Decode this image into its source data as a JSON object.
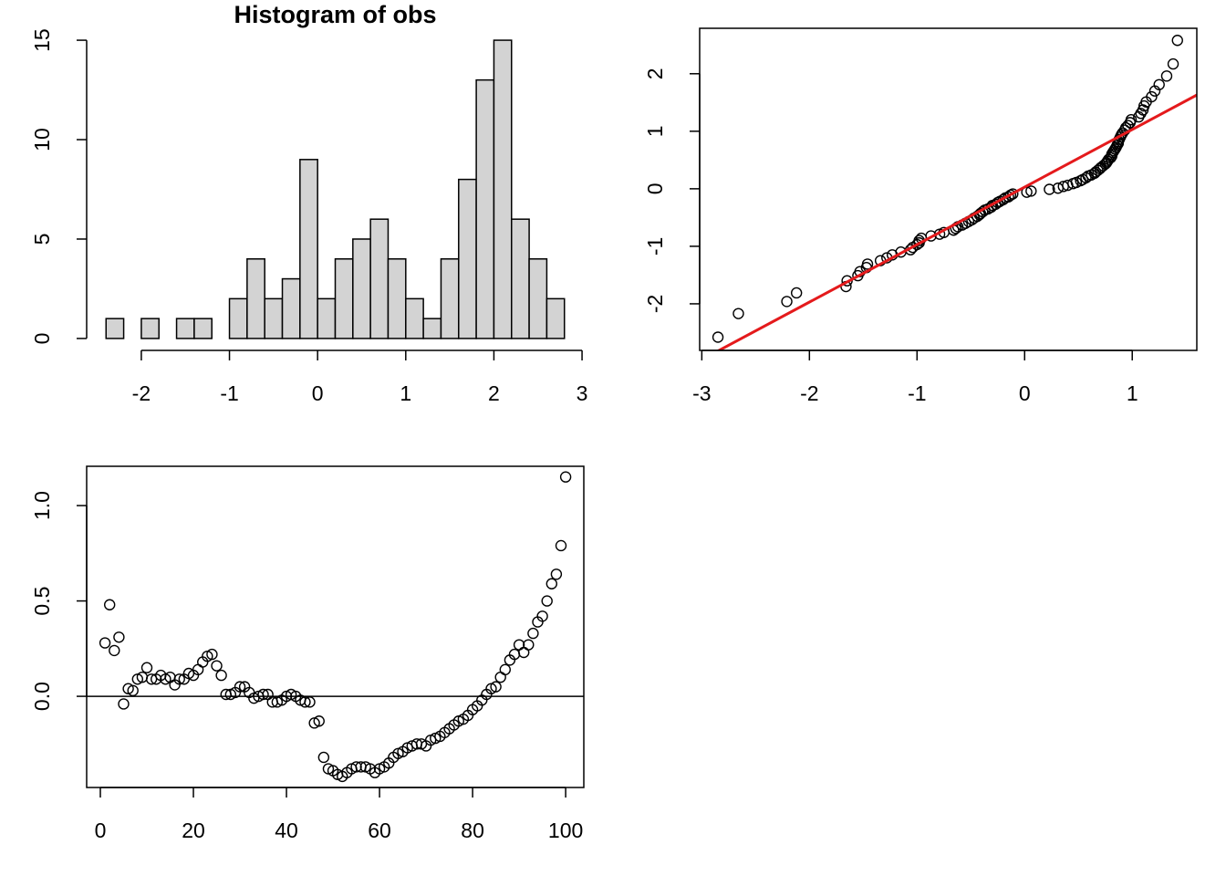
{
  "chart_data": [
    {
      "type": "histogram",
      "title": "Histogram of obs",
      "bins": [
        -2.4,
        -2.2,
        -2.0,
        -1.8,
        -1.6,
        -1.4,
        -1.2,
        -1.0,
        -0.8,
        -0.6,
        -0.4,
        -0.2,
        0,
        0.2,
        0.4,
        0.6,
        0.8,
        1.0,
        1.2,
        1.4,
        1.6,
        1.8,
        2.0,
        2.2,
        2.4,
        2.6,
        2.8
      ],
      "values": [
        1,
        0,
        1,
        0,
        1,
        1,
        0,
        2,
        4,
        2,
        3,
        9,
        2,
        4,
        5,
        6,
        4,
        2,
        1,
        4,
        8,
        13,
        15,
        6,
        4,
        2
      ],
      "color": "#d3d3d3",
      "xlim": [
        -2.62,
        3.02
      ],
      "xticks": [
        -2,
        -1,
        0,
        1,
        2,
        3
      ],
      "ylim": [
        -0.6,
        15.6
      ],
      "yticks": [
        0,
        5,
        10,
        15
      ]
    },
    {
      "type": "qq",
      "x": [
        -2.85,
        -2.66,
        -2.21,
        -2.12,
        -1.66,
        -1.65,
        -1.55,
        -1.53,
        -1.47,
        -1.46,
        -1.34,
        -1.28,
        -1.23,
        -1.15,
        -1.06,
        -1.04,
        -1.0,
        -0.98,
        -0.98,
        -0.96,
        -0.87,
        -0.79,
        -0.75,
        -0.66,
        -0.64,
        -0.62,
        -0.58,
        -0.55,
        -0.52,
        -0.49,
        -0.47,
        -0.44,
        -0.42,
        -0.41,
        -0.39,
        -0.37,
        -0.34,
        -0.31,
        -0.3,
        -0.27,
        -0.25,
        -0.23,
        -0.2,
        -0.18,
        -0.15,
        -0.13,
        -0.11,
        0.02,
        0.06,
        0.23,
        0.31,
        0.36,
        0.4,
        0.45,
        0.48,
        0.52,
        0.54,
        0.57,
        0.59,
        0.62,
        0.65,
        0.66,
        0.68,
        0.7,
        0.71,
        0.73,
        0.75,
        0.76,
        0.77,
        0.78,
        0.8,
        0.81,
        0.81,
        0.82,
        0.83,
        0.84,
        0.85,
        0.86,
        0.87,
        0.87,
        0.88,
        0.89,
        0.9,
        0.91,
        0.93,
        0.94,
        0.96,
        0.98,
        0.99,
        1.06,
        1.08,
        1.1,
        1.11,
        1.13,
        1.18,
        1.21,
        1.25,
        1.32,
        1.38,
        1.42
      ],
      "values": [
        -2.58,
        -2.17,
        -1.96,
        -1.81,
        -1.7,
        -1.6,
        -1.51,
        -1.44,
        -1.37,
        -1.31,
        -1.25,
        -1.2,
        -1.15,
        -1.1,
        -1.06,
        -1.02,
        -0.97,
        -0.94,
        -0.9,
        -0.86,
        -0.82,
        -0.79,
        -0.76,
        -0.72,
        -0.69,
        -0.66,
        -0.63,
        -0.6,
        -0.57,
        -0.54,
        -0.51,
        -0.48,
        -0.45,
        -0.43,
        -0.4,
        -0.37,
        -0.35,
        -0.32,
        -0.29,
        -0.27,
        -0.24,
        -0.22,
        -0.19,
        -0.16,
        -0.14,
        -0.11,
        -0.09,
        -0.06,
        -0.04,
        -0.01,
        0.01,
        0.04,
        0.06,
        0.09,
        0.11,
        0.14,
        0.16,
        0.19,
        0.22,
        0.24,
        0.27,
        0.29,
        0.32,
        0.35,
        0.37,
        0.4,
        0.43,
        0.45,
        0.48,
        0.51,
        0.54,
        0.57,
        0.6,
        0.63,
        0.66,
        0.69,
        0.72,
        0.76,
        0.79,
        0.82,
        0.86,
        0.9,
        0.94,
        0.97,
        1.02,
        1.06,
        1.1,
        1.15,
        1.2,
        1.25,
        1.31,
        1.37,
        1.44,
        1.51,
        1.6,
        1.7,
        1.81,
        1.96,
        2.17,
        2.58
      ],
      "color": "#000000",
      "line": {
        "intercept": 0.03,
        "slope": 1.0,
        "color": "#e41a1c"
      },
      "xlim": [
        -3.02,
        1.6
      ],
      "xticks": [
        -3,
        -2,
        -1,
        0,
        1
      ],
      "ylim": [
        -2.81,
        2.79
      ],
      "yticks": [
        -2,
        -1,
        0,
        1,
        2
      ]
    },
    {
      "type": "scatter",
      "x": [
        1,
        2,
        3,
        4,
        5,
        6,
        7,
        8,
        9,
        10,
        11,
        12,
        13,
        14,
        15,
        16,
        17,
        18,
        19,
        20,
        21,
        22,
        23,
        24,
        25,
        26,
        27,
        28,
        29,
        30,
        31,
        32,
        33,
        34,
        35,
        36,
        37,
        38,
        39,
        40,
        41,
        42,
        43,
        44,
        45,
        46,
        47,
        48,
        49,
        50,
        51,
        52,
        53,
        54,
        55,
        56,
        57,
        58,
        59,
        60,
        61,
        62,
        63,
        64,
        65,
        66,
        67,
        68,
        69,
        70,
        71,
        72,
        73,
        74,
        75,
        76,
        77,
        78,
        79,
        80,
        81,
        82,
        83,
        84,
        85,
        86,
        87,
        88,
        89,
        90,
        91,
        92,
        93,
        94,
        95,
        96,
        97,
        98,
        99,
        100
      ],
      "values": [
        0.28,
        0.48,
        0.24,
        0.31,
        -0.04,
        0.04,
        0.03,
        0.09,
        0.1,
        0.15,
        0.09,
        0.09,
        0.11,
        0.09,
        0.1,
        0.06,
        0.09,
        0.09,
        0.12,
        0.11,
        0.14,
        0.18,
        0.21,
        0.22,
        0.16,
        0.11,
        0.01,
        0.01,
        0.02,
        0.05,
        0.05,
        0.02,
        -0.01,
        0.0,
        0.01,
        0.01,
        -0.03,
        -0.03,
        -0.02,
        0.0,
        0.01,
        0.0,
        -0.02,
        -0.03,
        -0.03,
        -0.14,
        -0.13,
        -0.32,
        -0.38,
        -0.39,
        -0.41,
        -0.42,
        -0.4,
        -0.38,
        -0.37,
        -0.37,
        -0.37,
        -0.38,
        -0.4,
        -0.38,
        -0.37,
        -0.35,
        -0.32,
        -0.3,
        -0.29,
        -0.27,
        -0.26,
        -0.25,
        -0.25,
        -0.26,
        -0.23,
        -0.22,
        -0.21,
        -0.19,
        -0.17,
        -0.15,
        -0.13,
        -0.12,
        -0.1,
        -0.07,
        -0.05,
        -0.02,
        0.01,
        0.04,
        0.05,
        0.1,
        0.14,
        0.19,
        0.22,
        0.27,
        0.23,
        0.27,
        0.33,
        0.39,
        0.42,
        0.5,
        0.59,
        0.64,
        0.79,
        1.15
      ],
      "color": "#000000",
      "hline": 0,
      "xlim": [
        -2.94,
        103.9
      ],
      "xticks": [
        0,
        20,
        40,
        60,
        80,
        100
      ],
      "ylim": [
        -0.478,
        1.206
      ],
      "yticks": [
        {
          "value": 0,
          "label": "0.0"
        },
        0.5,
        {
          "value": 1,
          "label": "1.0"
        }
      ]
    }
  ]
}
